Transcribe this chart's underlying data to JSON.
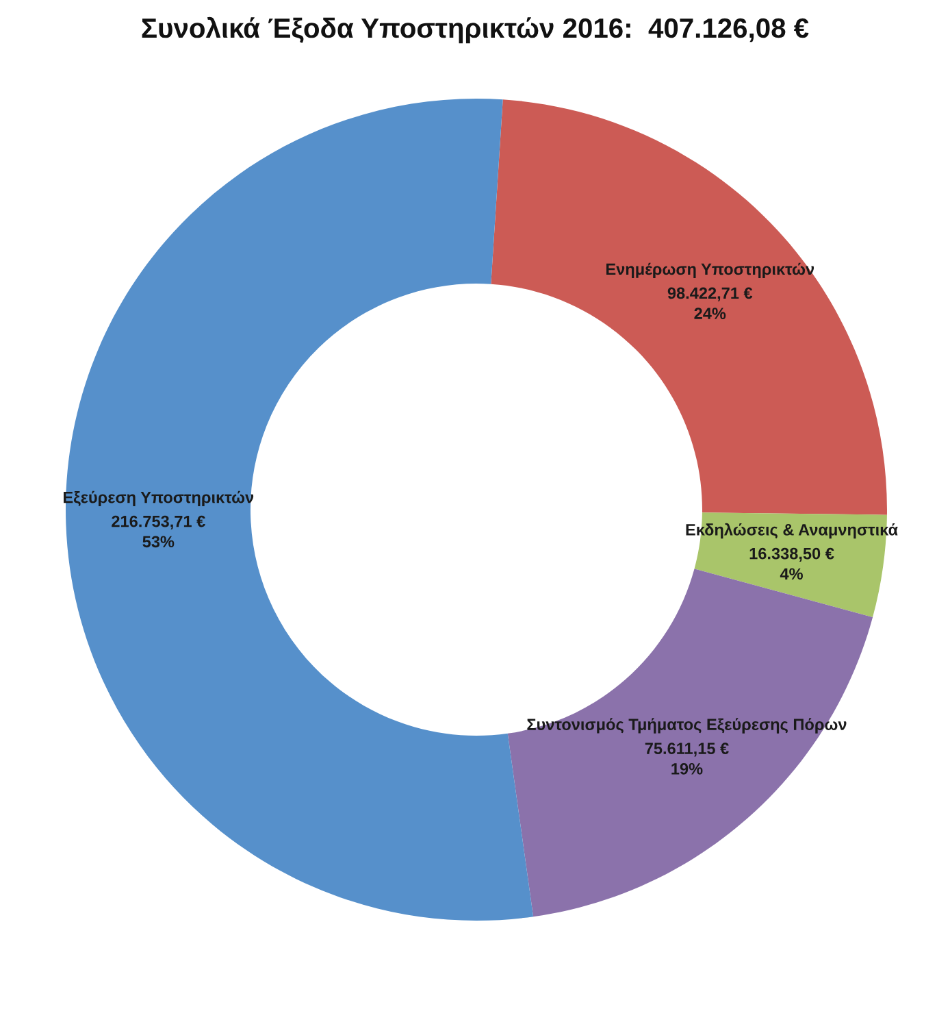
{
  "chart_data": {
    "type": "donut",
    "title": "Συνολικά Έξοδα Υποστηρικτών 2016:  407.126,08 €",
    "categories": [
      "Ενημέρωση Υποστηρικτών",
      "Εκδηλώσεις & Αναμνηστικά",
      "Συντονισμός Τμήματος Εξεύρεσης Πόρων",
      "Εξεύρεση Υποστηρικτών"
    ],
    "values": [
      98422.71,
      16338.5,
      75611.15,
      216753.71
    ],
    "colors": [
      "#cc5b55",
      "#a9c56a",
      "#8b72ab",
      "#5690cb"
    ],
    "value_labels": [
      "98.422,71 €\n24%",
      "16.338,50 €\n4%",
      "75.611,15 €\n19%",
      "216.753,71 €\n53%"
    ]
  }
}
